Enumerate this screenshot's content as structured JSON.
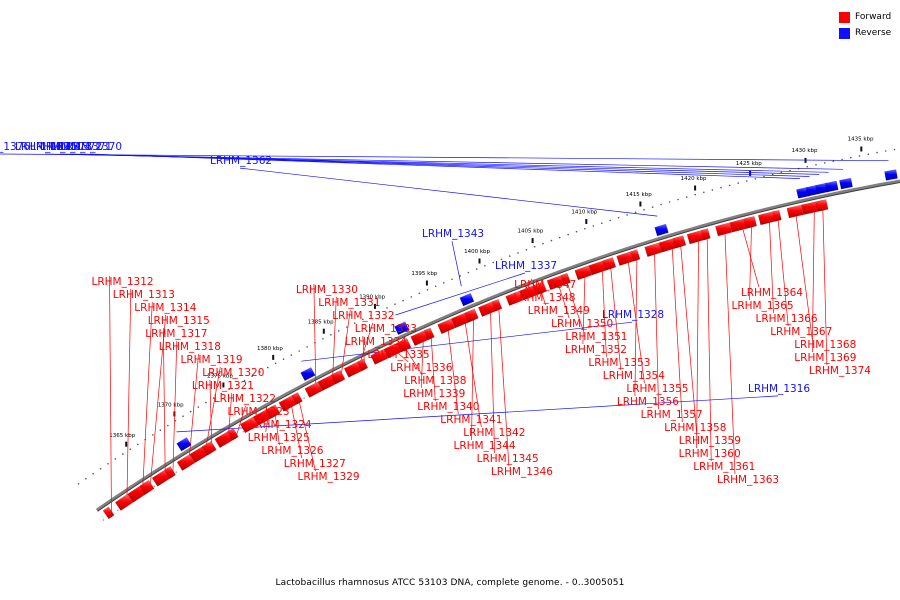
{
  "legend": {
    "items": [
      {
        "label": "Forward",
        "color": "#ff0000"
      },
      {
        "label": "Reverse",
        "color": "#1010ff"
      }
    ]
  },
  "caption": "Lactobacillus rhamnosus ATCC 53103 DNA, complete genome. - 0..3005051",
  "colors": {
    "forward": "#ff0000",
    "reverse": "#1010ff",
    "backbone": "#808080"
  },
  "scale_labels": [
    "1365 kbp",
    "1370 kbp",
    "1375 kbp",
    "1380 kbp",
    "1385 kbp",
    "1390 kbp",
    "1395 kbp",
    "1400 kbp",
    "1405 kbp",
    "1410 kbp",
    "1415 kbp",
    "1420 kbp",
    "1425 kbp",
    "1430 kbp",
    "1435 kbp"
  ],
  "reverse_genes": [
    "LRHM_1316",
    "LRHM_1328",
    "LRHM_1337",
    "LRHM_1343",
    "LRHM_1362",
    "LRHM_1370",
    "LRHM_1371",
    "LRHM_1372",
    "LRHM_1373",
    "LRHM_1375",
    "LRHM_1376"
  ],
  "forward_genes": [
    "LRHM_1312",
    "LRHM_1313",
    "LRHM_1314",
    "LRHM_1315",
    "LRHM_1317",
    "LRHM_1318",
    "LRHM_1319",
    "LRHM_1320",
    "LRHM_1321",
    "LRHM_1322",
    "LRHM_1323",
    "LRHM_1324",
    "LRHM_1325",
    "LRHM_1326",
    "LRHM_1327",
    "LRHM_1329",
    "LRHM_1330",
    "LRHM_1331",
    "LRHM_1332",
    "LRHM_1333",
    "LRHM_1334",
    "LRHM_1335",
    "LRHM_1336",
    "LRHM_1338",
    "LRHM_1339",
    "LRHM_1340",
    "LRHM_1341",
    "LRHM_1342",
    "LRHM_1344",
    "LRHM_1345",
    "LRHM_1346",
    "LRHM_1347",
    "LRHM_1348",
    "LRHM_1349",
    "LRHM_1350",
    "LRHM_1351",
    "LRHM_1352",
    "LRHM_1353",
    "LRHM_1354",
    "LRHM_1355",
    "LRHM_1356",
    "LRHM_1357",
    "LRHM_1358",
    "LRHM_1359",
    "LRHM_1360",
    "LRHM_1361",
    "LRHM_1363",
    "LRHM_1364",
    "LRHM_1365",
    "LRHM_1366",
    "LRHM_1367",
    "LRHM_1368",
    "LRHM_1369",
    "LRHM_1374"
  ]
}
